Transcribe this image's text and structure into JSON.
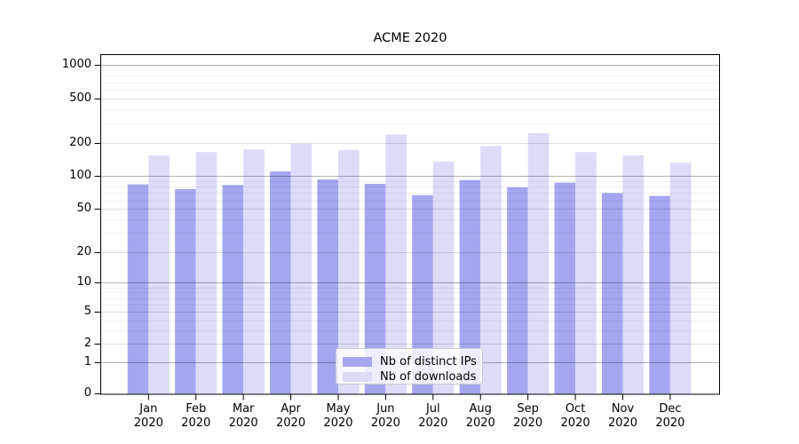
{
  "title": "ACME 2020",
  "chart_data": {
    "type": "bar",
    "title": "ACME 2020",
    "categories": [
      "Jan 2020",
      "Feb 2020",
      "Mar 2020",
      "Apr 2020",
      "May 2020",
      "Jun 2020",
      "Jul 2020",
      "Aug 2020",
      "Sep 2020",
      "Oct 2020",
      "Nov 2020",
      "Dec 2020"
    ],
    "x_tick_months": [
      "Jan",
      "Feb",
      "Mar",
      "Apr",
      "May",
      "Jun",
      "Jul",
      "Aug",
      "Sep",
      "Oct",
      "Nov",
      "Dec"
    ],
    "x_tick_year": "2020",
    "series": [
      {
        "name": "Nb of distinct IPs",
        "color": "#a6a6f0",
        "values": [
          84,
          76,
          83,
          110,
          93,
          85,
          67,
          92,
          79,
          87,
          70,
          66
        ]
      },
      {
        "name": "Nb of downloads",
        "color": "#dcdcf9",
        "values": [
          154,
          165,
          174,
          196,
          172,
          238,
          135,
          187,
          244,
          165,
          154,
          132
        ]
      }
    ],
    "y_ticks": [
      0,
      1,
      2,
      5,
      10,
      20,
      50,
      100,
      200,
      500,
      1000
    ],
    "y_scale": "log-like (symlog/log1p), 0 at baseline",
    "ylim": [
      0,
      1400
    ],
    "grid": "on (major dark, intermediate light, minor faint)",
    "legend_position": "lower center"
  },
  "legend": {
    "items": [
      {
        "label": "Nb of distinct IPs",
        "color": "#a6a6f0"
      },
      {
        "label": "Nb of downloads",
        "color": "#dcdcf9"
      }
    ]
  },
  "colors": {
    "bar_ips": "#a6a6f0",
    "bar_downloads": "#dcdcf9",
    "grid_major": "rgba(0,0,0,0.30)",
    "grid_mid": "rgba(0,0,0,0.13)",
    "grid_minor": "rgba(0,0,0,0.06)",
    "spine": "#000000",
    "text": "#000000"
  }
}
